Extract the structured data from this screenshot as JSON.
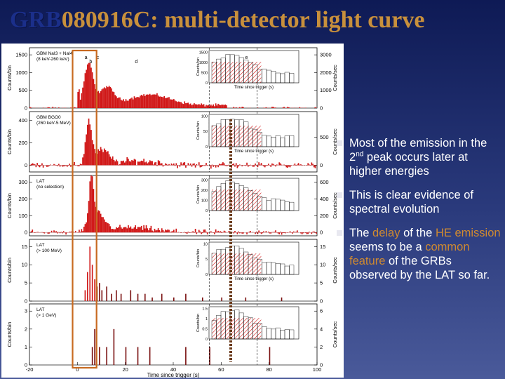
{
  "title": {
    "part1": "GRB",
    "part2": "080916C: multi-detector light curve"
  },
  "colors": {
    "background": "#1a2458",
    "title_accent": "#c8903c",
    "title_dark": "#1b2f8a",
    "light_curve": "#d01818",
    "high_energy": "#7a1010",
    "marker_box": "#c86a20"
  },
  "bullets": [
    {
      "text_html": "Most of the emission in the 2<sup>nd</sup> peak occurs later at higher energies"
    },
    {
      "text_html": "This is clear evidence of spectral evolution"
    },
    {
      "text_html": "The <span class=\"hl\">delay</span> of the <span class=\"hl\">HE emission</span> seems to be a <span class=\"hl\">common feature</span> of the GRBs observed by the LAT so far."
    }
  ],
  "chart_data": {
    "type": "bar",
    "x_label": "Time since trigger (s)",
    "x_ticks": [
      "-20",
      "0",
      "20",
      "40",
      "60",
      "80",
      "100"
    ],
    "xlim": [
      -20,
      100
    ],
    "right_axis_label": "Counts/sec",
    "markers": {
      "solid_line_x": 0,
      "dashed_lines_x": [
        55,
        75
      ]
    },
    "peak_labels": [
      "a",
      "b",
      "c",
      "d",
      "e"
    ],
    "panels": [
      {
        "label_lines": [
          "GBM NaI3 + NaI4",
          "(8 keV-260 keV)"
        ],
        "ylabel": "Counts/bin",
        "yticks": [
          "0",
          "500",
          "1000",
          "1500"
        ],
        "ylim": [
          0,
          1700
        ],
        "right_ticks": [
          "0",
          "1000",
          "2000",
          "3000"
        ],
        "right_lim": [
          0,
          3400
        ],
        "inset": {
          "ylabel": "Counts/bin",
          "yticks": [
            "0",
            "500",
            "1000",
            "1500"
          ],
          "ylim": [
            0,
            1700
          ],
          "xlabel": "Time since trigger (s)"
        }
      },
      {
        "label_lines": [
          "GBM BGO0",
          "(260 keV-5 MeV)"
        ],
        "ylabel": "Counts/bin",
        "yticks": [
          "0",
          "200",
          "400"
        ],
        "ylim": [
          -60,
          480
        ],
        "right_ticks": [
          "0",
          "500"
        ],
        "right_lim": [
          -120,
          960
        ],
        "inset": {
          "ylabel": "Counts/bin",
          "yticks": [
            "0",
            "50",
            "100"
          ],
          "ylim": [
            0,
            120
          ],
          "xlabel": "Time since trigger (s)"
        }
      },
      {
        "label_lines": [
          "LAT",
          "(no selection)"
        ],
        "ylabel": "Counts/bin",
        "yticks": [
          "0",
          "100",
          "200",
          "300"
        ],
        "ylim": [
          -20,
          340
        ],
        "right_ticks": [
          "0",
          "200",
          "400",
          "600"
        ],
        "right_lim": [
          -40,
          680
        ],
        "inset": {
          "ylabel": "Counts/bin",
          "yticks": [
            "0",
            "100",
            "200",
            "300"
          ],
          "ylim": [
            0,
            320
          ],
          "xlabel": ""
        }
      },
      {
        "label_lines": [
          "LAT",
          "(> 100 MeV)"
        ],
        "ylabel": "Counts/bin",
        "yticks": [
          "0",
          "5",
          "10",
          "15"
        ],
        "ylim": [
          0,
          17
        ],
        "right_ticks": [
          "0",
          "5",
          "10",
          "15"
        ],
        "right_lim": [
          0,
          17
        ],
        "inset": {
          "ylabel": "Counts/bin",
          "yticks": [
            "0",
            "5",
            "10"
          ],
          "ylim": [
            0,
            12
          ],
          "xlabel": "Time since trigger (s)"
        }
      },
      {
        "label_lines": [
          "LAT",
          "(> 1 GeV)"
        ],
        "ylabel": "Counts/bin",
        "yticks": [
          "0",
          "1",
          "2",
          "3"
        ],
        "ylim": [
          0,
          3.4
        ],
        "right_ticks": [
          "0",
          "2",
          "4",
          "6"
        ],
        "right_lim": [
          0,
          6.8
        ],
        "inset": {
          "ylabel": "Counts/bin",
          "yticks": [
            "0",
            "0.5",
            "1",
            "1.5"
          ],
          "ylim": [
            0,
            1.7
          ],
          "xlabel": ""
        }
      }
    ]
  }
}
